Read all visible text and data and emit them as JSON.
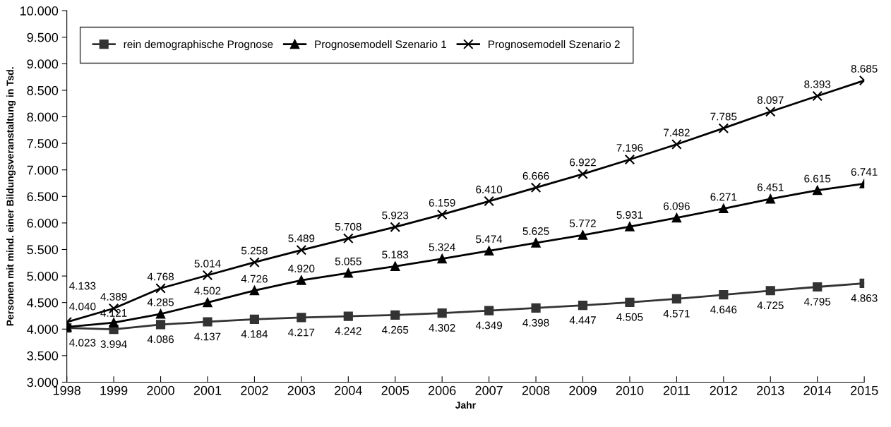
{
  "chart_data": {
    "type": "line",
    "xlabel": "Jahr",
    "ylabel": "Personen mit mind. einer Bildungsveranstaltung in Tsd.",
    "categories": [
      "1998",
      "1999",
      "2000",
      "2001",
      "2002",
      "2003",
      "2004",
      "2005",
      "2006",
      "2007",
      "2008",
      "2009",
      "2010",
      "2011",
      "2012",
      "2013",
      "2014",
      "2015"
    ],
    "ylim": [
      3000,
      10000
    ],
    "yticks": [
      {
        "value": 3000,
        "label": "3.000"
      },
      {
        "value": 3500,
        "label": "3.500"
      },
      {
        "value": 4000,
        "label": "4.000"
      },
      {
        "value": 4500,
        "label": "4.500"
      },
      {
        "value": 5000,
        "label": "5.000"
      },
      {
        "value": 5500,
        "label": "5.500"
      },
      {
        "value": 6000,
        "label": "6.000"
      },
      {
        "value": 6500,
        "label": "6.500"
      },
      {
        "value": 7000,
        "label": "7.000"
      },
      {
        "value": 7500,
        "label": "7.500"
      },
      {
        "value": 8000,
        "label": "8.000"
      },
      {
        "value": 8500,
        "label": "8.500"
      },
      {
        "value": 9000,
        "label": "9.000"
      },
      {
        "value": 9500,
        "label": "9.500"
      },
      {
        "value": 10000,
        "label": "10.000"
      }
    ],
    "grid": false,
    "legend": "top left",
    "line_style": "solid",
    "series": [
      {
        "name": "rein demographische Prognose",
        "color": "#333333",
        "marker": "square",
        "values": [
          4023,
          3994,
          4086,
          4137,
          4184,
          4217,
          4242,
          4265,
          4302,
          4349,
          4398,
          4447,
          4505,
          4571,
          4646,
          4725,
          4795,
          4863
        ],
        "value_labels": [
          "4.023",
          "3.994",
          "4.086",
          "4.137",
          "4.184",
          "4.217",
          "4.242",
          "4.265",
          "4.302",
          "4.349",
          "4.398",
          "4.447",
          "4.505",
          "4.571",
          "4.646",
          "4.725",
          "4.795",
          "4.863"
        ]
      },
      {
        "name": "Prognosemodell Szenario 1",
        "color": "#000000",
        "marker": "triangle",
        "values": [
          4040,
          4121,
          4285,
          4502,
          4726,
          4920,
          5055,
          5183,
          5324,
          5474,
          5625,
          5772,
          5931,
          6096,
          6271,
          6451,
          6615,
          6741
        ],
        "value_labels": [
          "4.040",
          "4.121",
          "4.285",
          "4.502",
          "4.726",
          "4.920",
          "5.055",
          "5.183",
          "5.324",
          "5.474",
          "5.625",
          "5.772",
          "5.931",
          "6.096",
          "6.271",
          "6.451",
          "6.615",
          "6.741"
        ]
      },
      {
        "name": "Prognosemodell Szenario 2",
        "color": "#000000",
        "marker": "cross",
        "values": [
          4133,
          4389,
          4768,
          5014,
          5258,
          5489,
          5708,
          5923,
          6159,
          6410,
          6666,
          6922,
          7196,
          7482,
          7785,
          8097,
          8393,
          8685
        ],
        "value_labels": [
          "4.133",
          "4.389",
          "4.768",
          "5.014",
          "5.258",
          "5.489",
          "5.708",
          "5.923",
          "6.159",
          "6.410",
          "6.666",
          "6.922",
          "7.196",
          "7.482",
          "7.785",
          "8.097",
          "8.393",
          "8.685"
        ]
      }
    ]
  }
}
